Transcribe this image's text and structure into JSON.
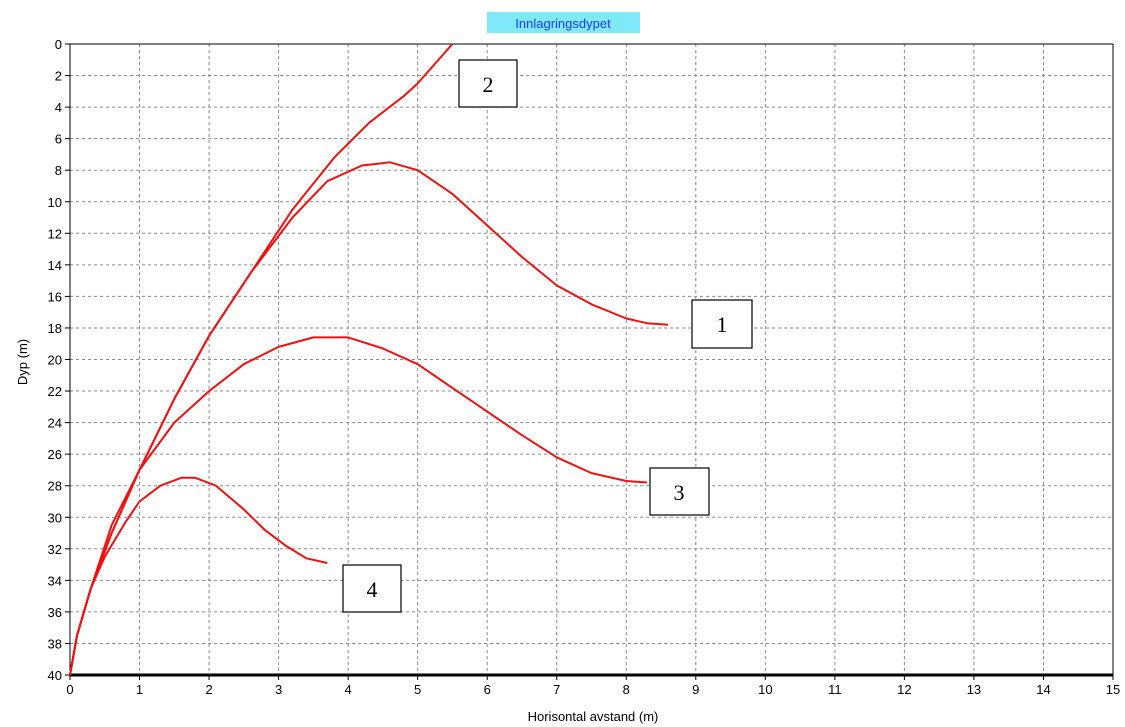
{
  "chart_data": {
    "type": "line",
    "title": "Innlagringsdypet",
    "xlabel": "Horisontal avstand (m)",
    "ylabel": "Dyp (m)",
    "xlim": [
      0,
      15
    ],
    "ylim": [
      0,
      40
    ],
    "y_inverted": true,
    "grid": true,
    "x_ticks": [
      "0",
      "1",
      "2",
      "3",
      "4",
      "5",
      "6",
      "7",
      "8",
      "9",
      "10",
      "11",
      "12",
      "13",
      "14",
      "15"
    ],
    "y_ticks": [
      "0",
      "2",
      "4",
      "6",
      "8",
      "10",
      "12",
      "14",
      "16",
      "18",
      "20",
      "22",
      "24",
      "26",
      "28",
      "30",
      "32",
      "34",
      "36",
      "38",
      "40"
    ],
    "line_color": "#ee1111",
    "series": [
      {
        "label": "1",
        "x": [
          0,
          0.1,
          0.3,
          0.6,
          1.0,
          1.5,
          2.0,
          2.6,
          3.2,
          3.7,
          4.2,
          4.6,
          5.0,
          5.5,
          6.0,
          6.5,
          7.0,
          7.5,
          8.0,
          8.3,
          8.6
        ],
        "y": [
          40,
          37.5,
          34.5,
          31,
          27,
          22.5,
          18.5,
          14.5,
          11,
          8.7,
          7.7,
          7.5,
          8.0,
          9.5,
          11.5,
          13.5,
          15.3,
          16.5,
          17.4,
          17.7,
          17.8
        ]
      },
      {
        "label": "2",
        "x": [
          0,
          0.1,
          0.3,
          0.6,
          1.0,
          1.5,
          2.0,
          2.6,
          3.2,
          3.8,
          4.3,
          4.8,
          5.0,
          5.5
        ],
        "y": [
          40,
          37.5,
          34.5,
          31,
          27,
          22.5,
          18.5,
          14.5,
          10.5,
          7.2,
          5.0,
          3.3,
          2.5,
          0
        ]
      },
      {
        "label": "3",
        "x": [
          0,
          0.1,
          0.3,
          0.6,
          1.0,
          1.5,
          2.0,
          2.5,
          3.0,
          3.5,
          4.0,
          4.5,
          5.0,
          5.5,
          6.0,
          6.5,
          7.0,
          7.5,
          8.0,
          8.3
        ],
        "y": [
          40,
          37.5,
          34.5,
          30.5,
          27.0,
          24.0,
          22.0,
          20.3,
          19.2,
          18.6,
          18.6,
          19.3,
          20.3,
          21.8,
          23.3,
          24.8,
          26.2,
          27.2,
          27.7,
          27.8
        ]
      },
      {
        "label": "4",
        "x": [
          0,
          0.1,
          0.3,
          0.5,
          0.8,
          1.0,
          1.3,
          1.6,
          1.8,
          2.1,
          2.5,
          2.8,
          3.1,
          3.4,
          3.7
        ],
        "y": [
          40,
          37.5,
          34.5,
          32.5,
          30.3,
          29.0,
          28.0,
          27.5,
          27.5,
          28.0,
          29.5,
          30.8,
          31.8,
          32.6,
          32.9
        ]
      }
    ],
    "callouts": [
      "2",
      "1",
      "3",
      "4"
    ]
  }
}
